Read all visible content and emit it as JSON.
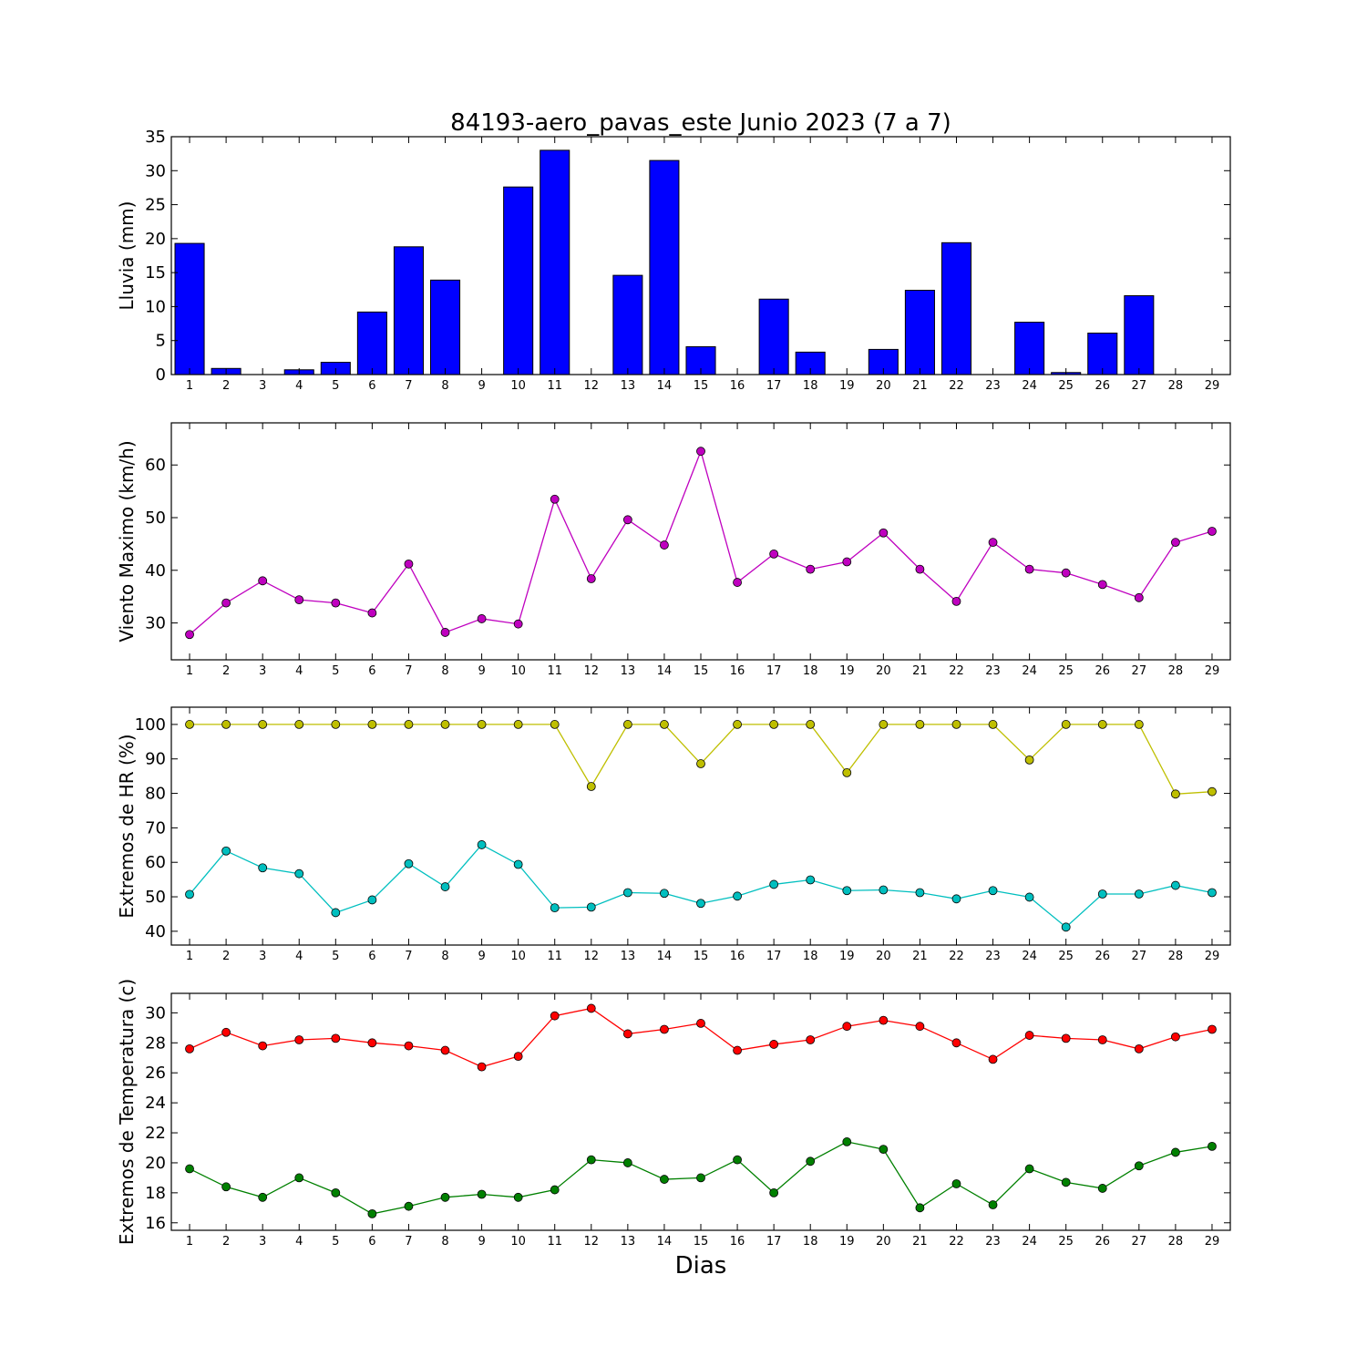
{
  "chart_data": [
    {
      "type": "bar",
      "title": "84193-aero_pavas_este Junio 2023  (7 a 7)",
      "xlabel": "",
      "ylabel": "Lluvia (mm)",
      "categories": [
        "1",
        "2",
        "3",
        "4",
        "5",
        "6",
        "7",
        "8",
        "9",
        "10",
        "11",
        "12",
        "13",
        "14",
        "15",
        "16",
        "17",
        "18",
        "19",
        "20",
        "21",
        "22",
        "23",
        "24",
        "25",
        "26",
        "27",
        "28",
        "29"
      ],
      "values": [
        19.3,
        0.9,
        0,
        0.7,
        1.8,
        9.2,
        18.8,
        13.9,
        0,
        27.6,
        33.0,
        0,
        14.6,
        31.5,
        4.1,
        0,
        11.1,
        3.3,
        0,
        3.7,
        12.4,
        19.4,
        0,
        7.7,
        0.3,
        6.1,
        11.6,
        0,
        0
      ],
      "ylim": [
        0,
        35
      ],
      "yticks": [
        0,
        5,
        10,
        15,
        20,
        25,
        30,
        35
      ],
      "colors": {
        "bar": "#0000ff",
        "edge": "#000000"
      },
      "grid": false
    },
    {
      "type": "line",
      "title": "",
      "xlabel": "",
      "ylabel": "Viento Maximo (km/h)",
      "x": [
        1,
        2,
        3,
        4,
        5,
        6,
        7,
        8,
        9,
        10,
        11,
        12,
        13,
        14,
        15,
        16,
        17,
        18,
        19,
        20,
        21,
        22,
        23,
        24,
        25,
        26,
        27,
        28,
        29
      ],
      "series": [
        {
          "values": [
            27.8,
            33.8,
            38.0,
            34.4,
            33.8,
            31.9,
            41.2,
            28.2,
            30.8,
            29.8,
            53.5,
            38.4,
            49.6,
            44.8,
            62.6,
            37.7,
            43.1,
            40.2,
            41.6,
            47.1,
            40.2,
            34.1,
            45.3,
            40.2,
            39.5,
            37.3,
            34.8,
            45.3,
            47.4
          ],
          "color": "#bf00bf"
        }
      ],
      "ylim": [
        23,
        68
      ],
      "yticks": [
        30,
        40,
        50,
        60
      ],
      "grid": false
    },
    {
      "type": "line",
      "title": "",
      "xlabel": "",
      "ylabel": "Extremos de HR (%)",
      "x": [
        1,
        2,
        3,
        4,
        5,
        6,
        7,
        8,
        9,
        10,
        11,
        12,
        13,
        14,
        15,
        16,
        17,
        18,
        19,
        20,
        21,
        22,
        23,
        24,
        25,
        26,
        27,
        28,
        29
      ],
      "series": [
        {
          "values": [
            100,
            100,
            100,
            100,
            100,
            100,
            100,
            100,
            100,
            100,
            100,
            82,
            100,
            100,
            88.6,
            100,
            100,
            100,
            86,
            100,
            100,
            100,
            100,
            89.7,
            100,
            100,
            100,
            79.8,
            80.5
          ],
          "color": "#bfbf00"
        },
        {
          "values": [
            50.7,
            63.3,
            58.4,
            56.7,
            45.4,
            49.1,
            59.6,
            52.9,
            65.1,
            59.4,
            46.8,
            47.0,
            51.2,
            51.0,
            48.1,
            50.2,
            53.6,
            54.9,
            51.8,
            52.0,
            51.2,
            49.4,
            51.8,
            49.9,
            41.2,
            50.8,
            50.8,
            53.3,
            51.2
          ],
          "color": "#00bfbf"
        }
      ],
      "ylim": [
        36,
        105
      ],
      "yticks": [
        40,
        50,
        60,
        70,
        80,
        90,
        100
      ],
      "grid": false
    },
    {
      "type": "line",
      "title": "",
      "xlabel": "Dias",
      "ylabel": "Extremos de Temperatura (c)",
      "x": [
        1,
        2,
        3,
        4,
        5,
        6,
        7,
        8,
        9,
        10,
        11,
        12,
        13,
        14,
        15,
        16,
        17,
        18,
        19,
        20,
        21,
        22,
        23,
        24,
        25,
        26,
        27,
        28,
        29
      ],
      "series": [
        {
          "values": [
            27.6,
            28.7,
            27.8,
            28.2,
            28.3,
            28.0,
            27.8,
            27.5,
            26.4,
            27.1,
            29.8,
            30.3,
            28.6,
            28.9,
            29.3,
            27.5,
            27.9,
            28.2,
            29.1,
            29.5,
            29.1,
            28.0,
            26.9,
            28.5,
            28.3,
            28.2,
            27.6,
            28.4,
            28.9
          ],
          "color": "#ff0000"
        },
        {
          "values": [
            19.6,
            18.4,
            17.7,
            19.0,
            18.0,
            16.6,
            17.1,
            17.7,
            17.9,
            17.7,
            18.2,
            20.2,
            20.0,
            18.9,
            19.0,
            20.2,
            18.0,
            20.1,
            21.4,
            20.9,
            17.0,
            18.6,
            17.2,
            19.6,
            18.7,
            18.3,
            19.8,
            20.7,
            21.1
          ],
          "color": "#008000"
        }
      ],
      "ylim": [
        15.5,
        31.3
      ],
      "yticks": [
        16,
        18,
        20,
        22,
        24,
        26,
        28,
        30
      ],
      "grid": false
    }
  ]
}
